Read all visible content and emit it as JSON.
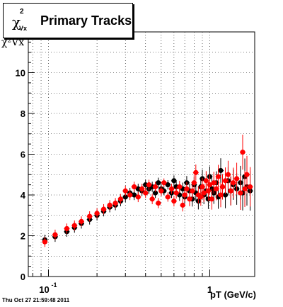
{
  "title": {
    "symbol": "χ",
    "superscript": "2",
    "subscript": "Vx",
    "text": "Primary Tracks"
  },
  "footer": "Thu Oct 27 21:59:48 2011",
  "colors": {
    "series_black": "#000000",
    "series_red": "#ff0000",
    "frame": "#000000",
    "grid": "#000000"
  },
  "chart_data": {
    "type": "scatter",
    "title": "χ²Vx Primary Tracks",
    "xlabel": "pT (GeV/c)",
    "ylabel": "χ²Vx",
    "xscale": "log",
    "xlim": [
      0.075,
      1.9
    ],
    "ylim": [
      0,
      12
    ],
    "grid": true,
    "x_ticks": [
      {
        "value": 0.1,
        "label": "10",
        "exp": "-1"
      },
      {
        "value": 1,
        "label": "1"
      }
    ],
    "y_ticks": [
      0,
      2,
      4,
      6,
      8,
      10
    ],
    "series": [
      {
        "color": "#000000",
        "x": [
          0.095,
          0.11,
          0.13,
          0.145,
          0.16,
          0.18,
          0.2,
          0.22,
          0.24,
          0.26,
          0.28,
          0.3,
          0.32,
          0.34,
          0.36,
          0.38,
          0.4,
          0.42,
          0.44,
          0.46,
          0.48,
          0.5,
          0.52,
          0.55,
          0.58,
          0.6,
          0.62,
          0.65,
          0.68,
          0.7,
          0.72,
          0.75,
          0.78,
          0.8,
          0.82,
          0.85,
          0.88,
          0.9,
          0.92,
          0.95,
          0.98,
          1.0,
          1.03,
          1.06,
          1.1,
          1.13,
          1.17,
          1.2,
          1.25,
          1.3,
          1.35,
          1.4,
          1.47,
          1.55,
          1.6,
          1.65,
          1.7,
          1.78
        ],
        "y": [
          1.8,
          1.95,
          2.2,
          2.4,
          2.6,
          2.8,
          3.0,
          3.2,
          3.4,
          3.5,
          3.7,
          3.9,
          4.1,
          4.0,
          4.3,
          4.2,
          4.5,
          4.3,
          4.4,
          4.1,
          4.6,
          4.3,
          4.2,
          4.5,
          4.1,
          4.7,
          4.4,
          4.0,
          4.3,
          3.9,
          4.6,
          4.2,
          3.8,
          4.5,
          4.1,
          3.7,
          4.4,
          4.8,
          4.0,
          4.2,
          3.8,
          4.9,
          4.3,
          4.1,
          4.6,
          3.9,
          5.2,
          4.4,
          4.0,
          4.7,
          4.2,
          4.5,
          4.3,
          4.6,
          4.1,
          4.9,
          4.4,
          4.2
        ]
      },
      {
        "color": "#ff0000",
        "x": [
          0.095,
          0.11,
          0.13,
          0.145,
          0.16,
          0.18,
          0.2,
          0.22,
          0.24,
          0.26,
          0.28,
          0.3,
          0.32,
          0.34,
          0.36,
          0.38,
          0.4,
          0.42,
          0.44,
          0.46,
          0.48,
          0.5,
          0.52,
          0.55,
          0.58,
          0.6,
          0.62,
          0.65,
          0.68,
          0.7,
          0.72,
          0.75,
          0.78,
          0.8,
          0.82,
          0.85,
          0.88,
          0.9,
          0.92,
          0.95,
          0.98,
          1.0,
          1.03,
          1.06,
          1.1,
          1.13,
          1.17,
          1.2,
          1.25,
          1.3,
          1.35,
          1.4,
          1.47,
          1.55,
          1.6,
          1.65,
          1.7,
          1.78
        ],
        "y": [
          1.7,
          2.05,
          2.35,
          2.5,
          2.7,
          2.95,
          3.1,
          3.3,
          3.5,
          3.6,
          3.8,
          4.2,
          4.0,
          4.4,
          3.9,
          4.3,
          4.1,
          4.5,
          3.8,
          4.4,
          3.6,
          4.2,
          4.6,
          3.9,
          4.3,
          3.7,
          4.1,
          4.4,
          3.5,
          4.0,
          4.3,
          3.8,
          4.2,
          4.6,
          5.1,
          4.0,
          3.9,
          4.4,
          4.1,
          4.7,
          4.2,
          4.5,
          3.8,
          4.6,
          4.3,
          4.9,
          4.0,
          4.4,
          4.7,
          5.0,
          4.2,
          4.6,
          4.8,
          4.1,
          6.1,
          4.3,
          5.0,
          4.4
        ]
      }
    ]
  }
}
